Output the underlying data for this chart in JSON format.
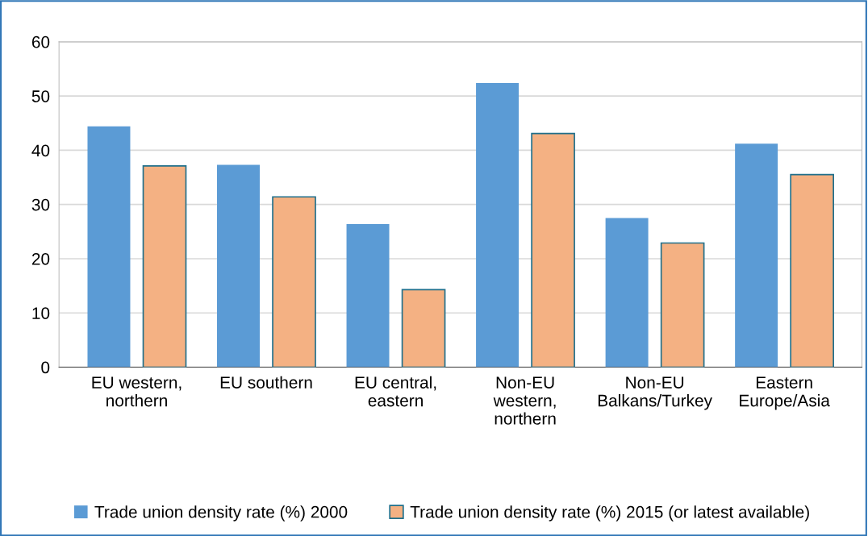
{
  "chart_data": {
    "type": "bar",
    "categories": [
      "EU western,\nnorthern",
      "EU southern",
      "EU central,\neastern",
      "Non-EU\nwestern,\nnorthern",
      "Non-EU\nBalkans/Turkey",
      "Eastern\nEurope/Asia"
    ],
    "series": [
      {
        "name": "Trade union density rate (%) 2000",
        "color": "#5b9bd5",
        "values": [
          44.4,
          37.3,
          26.4,
          52.4,
          27.5,
          41.2
        ]
      },
      {
        "name": "Trade union density rate (%) 2015 (or latest available)",
        "color": "#f4b183",
        "values": [
          37.1,
          31.4,
          14.3,
          43.1,
          22.9,
          35.5
        ]
      }
    ],
    "ylim": [
      0,
      60
    ],
    "yticks": [
      0,
      10,
      20,
      30,
      40,
      50,
      60
    ],
    "grid": "y",
    "legend": "bottom"
  }
}
